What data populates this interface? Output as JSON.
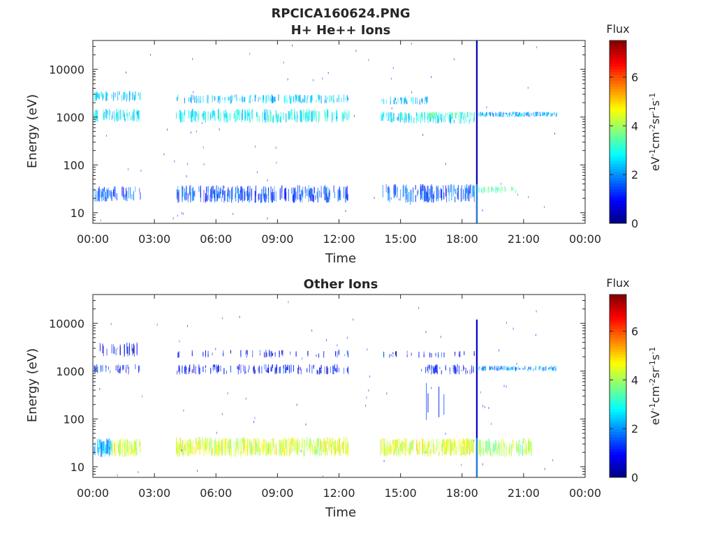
{
  "figure": {
    "title_line1": "RPCICA160624.PNG"
  },
  "chart_data": [
    {
      "type": "heatmap",
      "title": "H+ He++ Ions",
      "xlabel": "Time",
      "ylabel": "Energy (eV)",
      "x_ticks": [
        "00:00",
        "03:00",
        "06:00",
        "09:00",
        "12:00",
        "15:00",
        "18:00",
        "21:00",
        "00:00"
      ],
      "xlim_hours": [
        0,
        24
      ],
      "y_scale": "log",
      "y_ticks": [
        "10",
        "100",
        "1000",
        "10000"
      ],
      "ylim": [
        6,
        40000
      ],
      "colorbar": {
        "label": "Flux",
        "units": "eV-1cm-2sr-1s-1",
        "ticks": [
          "0",
          "2",
          "4",
          "6"
        ],
        "range": [
          0,
          7.5
        ],
        "colormap": "jet"
      },
      "bands": [
        {
          "t0": 0.05,
          "t1": 2.3,
          "e0": 2100,
          "e1": 3600,
          "flux": 2.4,
          "density": 0.55
        },
        {
          "t0": 0.05,
          "t1": 2.3,
          "e0": 780,
          "e1": 1500,
          "flux": 2.6,
          "density": 0.6
        },
        {
          "t0": 0.05,
          "t1": 2.3,
          "e0": 17,
          "e1": 36,
          "flux": 1.6,
          "density": 0.55
        },
        {
          "t0": 4.05,
          "t1": 12.5,
          "e0": 1900,
          "e1": 3000,
          "flux": 2.4,
          "density": 0.45
        },
        {
          "t0": 4.05,
          "t1": 12.5,
          "e0": 760,
          "e1": 1500,
          "flux": 2.8,
          "density": 0.6
        },
        {
          "t0": 4.05,
          "t1": 12.5,
          "e0": 16,
          "e1": 38,
          "flux": 1.5,
          "density": 0.6
        },
        {
          "t0": 14.0,
          "t1": 16.3,
          "e0": 1800,
          "e1": 2700,
          "flux": 2.3,
          "density": 0.45
        },
        {
          "t0": 14.0,
          "t1": 18.6,
          "e0": 720,
          "e1": 1300,
          "flux": 2.7,
          "density": 0.5
        },
        {
          "t0": 16.3,
          "t1": 18.6,
          "e0": 900,
          "e1": 1300,
          "flux": 3.4,
          "density": 0.5
        },
        {
          "t0": 14.0,
          "t1": 18.6,
          "e0": 16,
          "e1": 40,
          "flux": 1.5,
          "density": 0.6
        },
        {
          "t0": 16.2,
          "t1": 18.6,
          "e0": 60,
          "e1": 600,
          "flux": 0.8,
          "density": 0.05
        },
        {
          "t0": 18.8,
          "t1": 22.6,
          "e0": 1000,
          "e1": 1300,
          "flux": 2.2,
          "density": 0.85
        },
        {
          "t0": 18.8,
          "t1": 20.7,
          "e0": 25,
          "e1": 36,
          "flux": 3.6,
          "density": 0.55
        }
      ],
      "spike": {
        "t": 18.72,
        "e0": 6,
        "e1": 40000,
        "flux": 0.4
      }
    },
    {
      "type": "heatmap",
      "title": "Other Ions",
      "xlabel": "Time",
      "ylabel": "Energy (eV)",
      "x_ticks": [
        "00:00",
        "03:00",
        "06:00",
        "09:00",
        "12:00",
        "15:00",
        "18:00",
        "21:00",
        "00:00"
      ],
      "xlim_hours": [
        0,
        24
      ],
      "y_scale": "log",
      "y_ticks": [
        "10",
        "100",
        "1000",
        "10000"
      ],
      "ylim": [
        6,
        40000
      ],
      "colorbar": {
        "label": "Flux",
        "units": "eV-1cm-2sr-1s-1",
        "ticks": [
          "0",
          "2",
          "4",
          "6"
        ],
        "range": [
          0,
          7.5
        ],
        "colormap": "jet"
      },
      "bands": [
        {
          "t0": 0.05,
          "t1": 2.3,
          "e0": 2000,
          "e1": 4000,
          "flux": 0.9,
          "density": 0.35
        },
        {
          "t0": 0.05,
          "t1": 2.3,
          "e0": 900,
          "e1": 1400,
          "flux": 1.0,
          "density": 0.35
        },
        {
          "t0": 0.05,
          "t1": 0.9,
          "e0": 16,
          "e1": 40,
          "flux": 2.2,
          "density": 0.85
        },
        {
          "t0": 0.9,
          "t1": 2.3,
          "e0": 16,
          "e1": 40,
          "flux": 4.3,
          "density": 0.8
        },
        {
          "t0": 4.05,
          "t1": 12.5,
          "e0": 1900,
          "e1": 2800,
          "flux": 1.0,
          "density": 0.2
        },
        {
          "t0": 4.05,
          "t1": 12.5,
          "e0": 850,
          "e1": 1400,
          "flux": 1.0,
          "density": 0.4
        },
        {
          "t0": 4.05,
          "t1": 12.5,
          "e0": 16,
          "e1": 42,
          "flux": 4.4,
          "density": 0.85
        },
        {
          "t0": 14.0,
          "t1": 18.6,
          "e0": 1900,
          "e1": 2700,
          "flux": 1.0,
          "density": 0.2
        },
        {
          "t0": 16.0,
          "t1": 18.6,
          "e0": 850,
          "e1": 1400,
          "flux": 1.0,
          "density": 0.55
        },
        {
          "t0": 14.0,
          "t1": 18.6,
          "e0": 16,
          "e1": 40,
          "flux": 4.5,
          "density": 0.85
        },
        {
          "t0": 16.2,
          "t1": 18.6,
          "e0": 60,
          "e1": 600,
          "flux": 1.2,
          "density": 0.06
        },
        {
          "t0": 18.8,
          "t1": 22.6,
          "e0": 1000,
          "e1": 1300,
          "flux": 2.0,
          "density": 0.7
        },
        {
          "t0": 18.8,
          "t1": 21.4,
          "e0": 16,
          "e1": 40,
          "flux": 4.0,
          "density": 0.75
        }
      ],
      "spike": {
        "t": 18.72,
        "e0": 6,
        "e1": 12000,
        "flux": 0.6
      }
    }
  ]
}
